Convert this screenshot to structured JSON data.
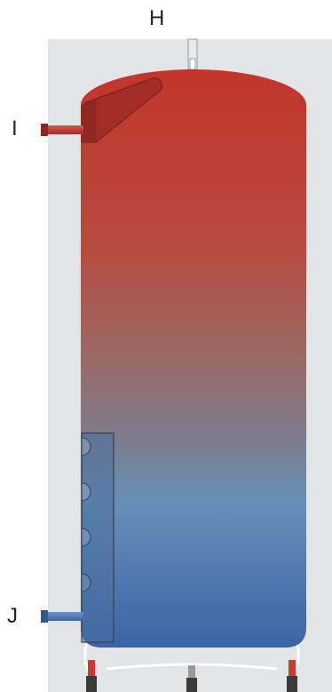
{
  "diagram": {
    "labels": {
      "top_connection": "H",
      "upper_side_connection": "I",
      "lower_side_connection": "J"
    },
    "colors": {
      "background_panel": "#e3e4e6",
      "hot_water": "#c2352c",
      "cold_water": "#3f69a7",
      "pipe_hot": "#c93b33",
      "pipe_cold": "#4a76b2",
      "outline": "#444444"
    },
    "icons": {
      "tank": "water-heater-tank-icon",
      "heat_exchanger": "coil-heat-exchanger-icon",
      "upper_port": "flange-port-icon"
    }
  }
}
